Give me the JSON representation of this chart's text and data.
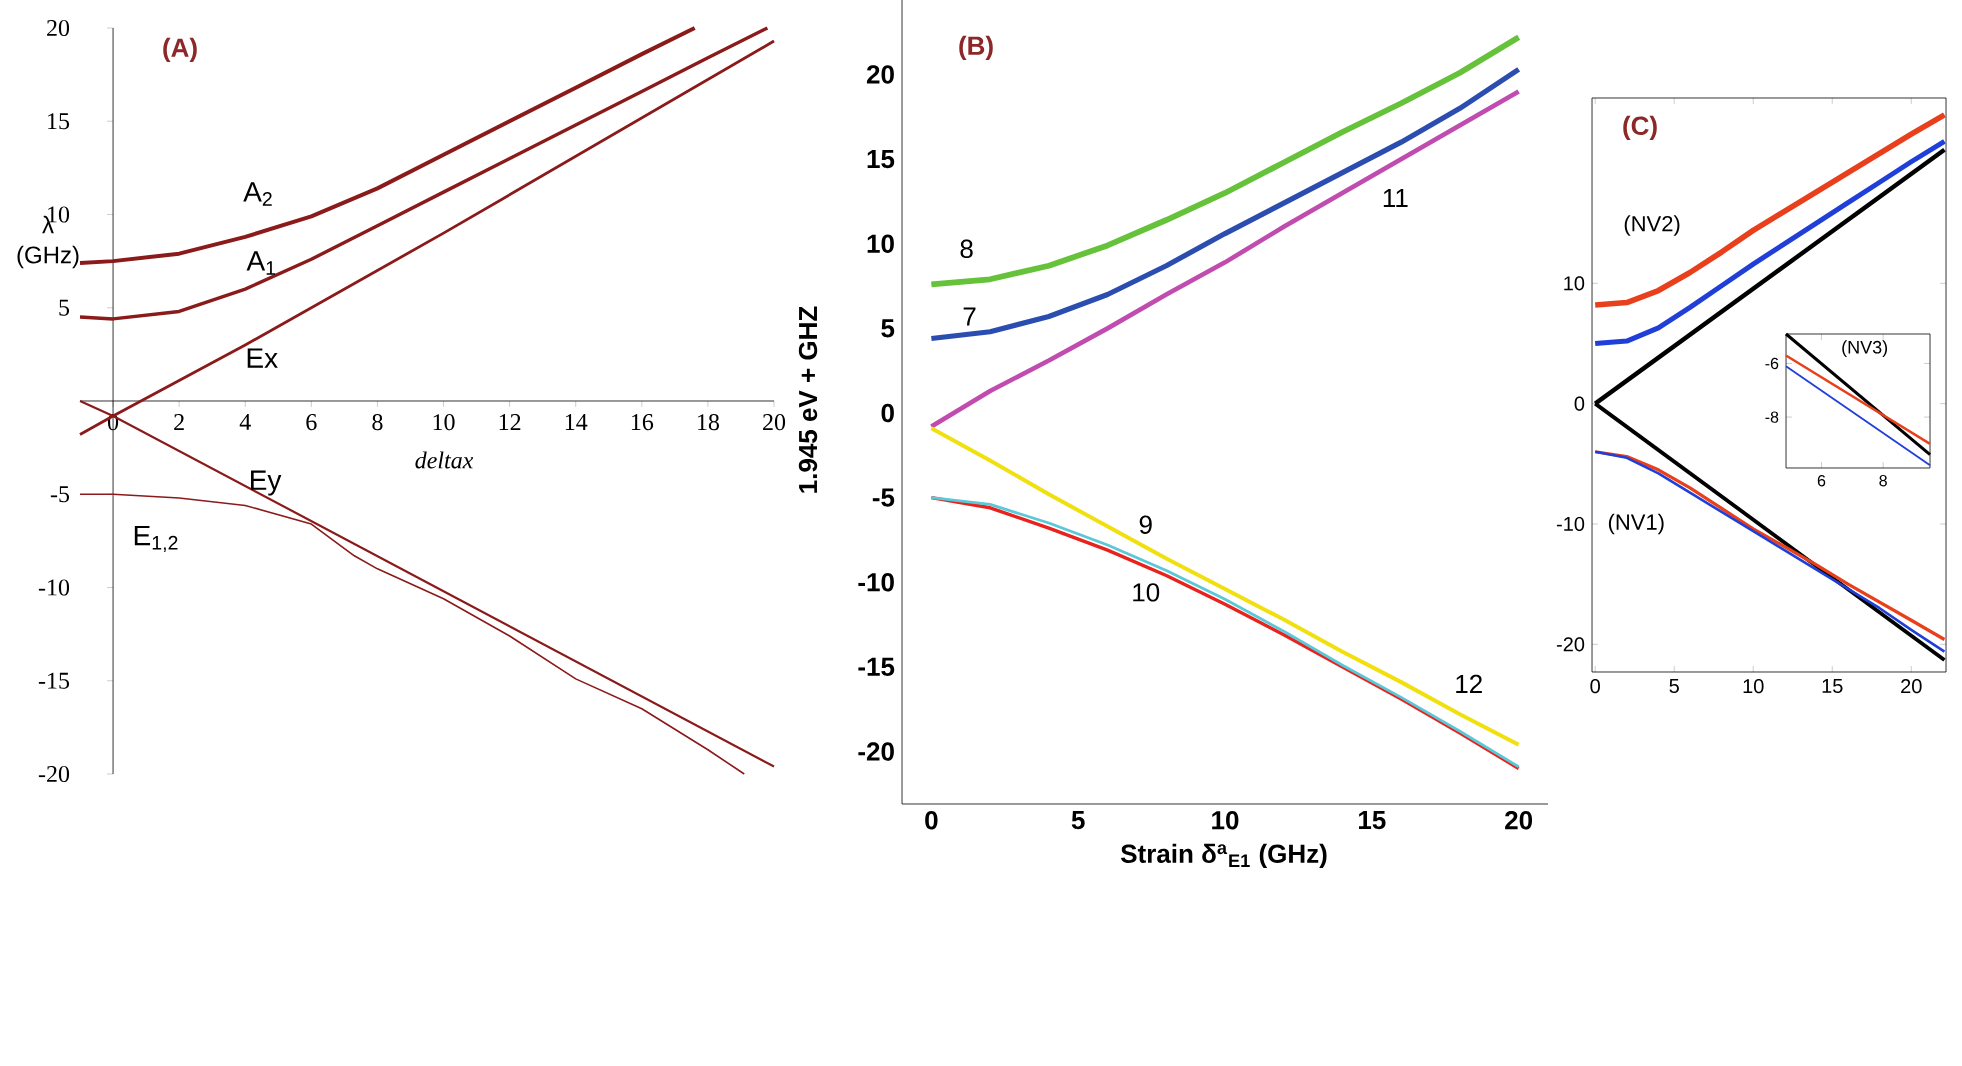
{
  "chart_data": [
    {
      "type": "line",
      "title": "(A)",
      "xlabel": "deltax",
      "ylabel": "λ (GHz)",
      "xlim": [
        -1,
        20
      ],
      "ylim": [
        -20,
        20
      ],
      "xticks": [
        0,
        2,
        4,
        6,
        8,
        10,
        12,
        14,
        16,
        18,
        20
      ],
      "yticks": [
        -20,
        -15,
        -10,
        -5,
        5,
        10,
        15,
        20
      ],
      "series": [
        {
          "color": "#8b1a1a",
          "x": [
            -1,
            0,
            2,
            4,
            6,
            8,
            10,
            12,
            14,
            16,
            17.6
          ],
          "values": [
            7.4,
            7.5,
            7.9,
            8.8,
            9.9,
            11.4,
            13.2,
            15.0,
            16.8,
            18.6,
            20
          ]
        },
        {
          "color": "#8b1a1a",
          "x": [
            -1,
            0,
            2,
            4,
            6,
            8,
            10,
            12,
            14,
            16,
            18,
            19.8
          ],
          "values": [
            4.5,
            4.4,
            4.8,
            6.0,
            7.6,
            9.4,
            11.2,
            13.0,
            14.8,
            16.6,
            18.4,
            20
          ]
        },
        {
          "color": "#8b1a1a",
          "x": [
            -1,
            0,
            2,
            4,
            10,
            20
          ],
          "values": [
            -1.8,
            -0.8,
            1.1,
            3.0,
            9.0,
            19.3
          ]
        },
        {
          "color": "#8b1a1a",
          "x": [
            -1,
            0,
            10,
            20
          ],
          "values": [
            0,
            -0.8,
            -10.2,
            -19.6
          ]
        },
        {
          "color": "#8b1a1a",
          "x": [
            -1,
            0,
            2,
            4,
            6,
            7.3,
            8,
            10,
            12,
            14,
            16,
            18,
            19.1
          ],
          "values": [
            -5,
            -5,
            -5.2,
            -5.6,
            -6.6,
            -8.3,
            -9.0,
            -10.6,
            -12.6,
            -14.9,
            -16.5,
            -18.7,
            -20
          ]
        }
      ],
      "annotations": [
        "A$_{2}$",
        "A$_{1}$",
        "Ex",
        "Ey",
        "E$_{1,2}$"
      ]
    },
    {
      "type": "line",
      "title": "(B)",
      "xlabel": "Strain δ$^{a}$$_{E1}$ (GHz)",
      "ylabel": "1.945 eV + GHZ",
      "xlim": [
        -1,
        21
      ],
      "ylim": [
        -23.1,
        24.4
      ],
      "xticks": [
        0,
        5,
        10,
        15,
        20
      ],
      "yticks": [
        -20,
        -15,
        -10,
        -5,
        0,
        5,
        10,
        15,
        20
      ],
      "x": [
        0,
        2,
        4,
        6,
        8,
        10,
        12,
        14,
        16,
        18,
        20
      ],
      "series": [
        {
          "color": "#66c23a",
          "values": [
            7.6,
            7.9,
            8.7,
            9.9,
            11.4,
            13.0,
            14.8,
            16.6,
            18.3,
            20.1,
            22.2
          ]
        },
        {
          "color": "#2b4db0",
          "values": [
            4.4,
            4.8,
            5.7,
            7.0,
            8.7,
            10.6,
            12.4,
            14.2,
            16.0,
            18.0,
            20.3
          ]
        },
        {
          "color": "#c04cb0",
          "values": [
            -0.8,
            1.3,
            3.1,
            5.0,
            7.0,
            8.9,
            11.0,
            13.0,
            15.0,
            17.0,
            19.0
          ]
        },
        {
          "color": "#f0e010",
          "values": [
            -0.9,
            -2.8,
            -4.8,
            -6.7,
            -8.6,
            -10.4,
            -12.2,
            -14.1,
            -15.9,
            -17.8,
            -19.6
          ]
        },
        {
          "color": "#e8221c",
          "values": [
            -5.0,
            -5.6,
            -6.8,
            -8.1,
            -9.6,
            -11.3,
            -13.1,
            -15.0,
            -16.9,
            -18.9,
            -21.0
          ]
        },
        {
          "color": "#5bc8d8",
          "values": [
            -5.0,
            -5.4,
            -6.5,
            -7.8,
            -9.3,
            -11.0,
            -12.9,
            -14.9,
            -16.8,
            -18.8,
            -20.9
          ]
        }
      ],
      "annotations": [
        "8",
        "7",
        "11",
        "9",
        "10",
        "12"
      ]
    },
    {
      "type": "line",
      "title": "(C)",
      "xlim": [
        -0.2,
        22.2
      ],
      "ylim": [
        -22.3,
        25.4
      ],
      "xticks": [
        0,
        5,
        10,
        15,
        20
      ],
      "yticks": [
        -20,
        -10,
        0,
        10
      ],
      "series": [
        {
          "color": "#e8401c",
          "x": [
            0,
            2,
            4,
            6,
            8,
            10,
            12,
            14,
            16,
            18,
            20,
            22.1
          ],
          "values": [
            8.2,
            8.4,
            9.4,
            10.9,
            12.6,
            14.4,
            16.0,
            17.6,
            19.2,
            20.8,
            22.4,
            24.0
          ]
        },
        {
          "color": "#1f3fd8",
          "x": [
            0,
            2,
            4,
            6,
            8,
            10,
            12,
            14,
            16,
            18,
            20,
            22.1
          ],
          "values": [
            5.0,
            5.2,
            6.3,
            8.0,
            9.8,
            11.6,
            13.3,
            15.0,
            16.7,
            18.4,
            20.1,
            21.8
          ]
        },
        {
          "color": "#000000",
          "x": [
            0,
            22.1
          ],
          "values": [
            0,
            21.1
          ]
        },
        {
          "color": "#000000",
          "x": [
            0,
            22.1
          ],
          "values": [
            0,
            -21.3
          ]
        },
        {
          "color": "#e8401c",
          "x": [
            0,
            2,
            4,
            6,
            8,
            10,
            12,
            14,
            16,
            18,
            20,
            22.1
          ],
          "values": [
            -4.0,
            -4.4,
            -5.5,
            -7.0,
            -8.7,
            -10.4,
            -11.9,
            -13.4,
            -15.0,
            -16.5,
            -18.0,
            -19.6
          ]
        },
        {
          "color": "#1f3fd8",
          "x": [
            0,
            2,
            4,
            6,
            8,
            10,
            12,
            14,
            16,
            18,
            20,
            22.1
          ],
          "values": [
            -4.0,
            -4.5,
            -5.8,
            -7.4,
            -9.0,
            -10.6,
            -12.2,
            -13.8,
            -15.4,
            -17.0,
            -18.8,
            -20.6
          ]
        }
      ],
      "annotations": [
        "(NV2)",
        "(NV1)"
      ]
    },
    {
      "type": "line",
      "xlim": [
        4.85,
        9.52
      ],
      "ylim": [
        -9.9,
        -4.9
      ],
      "xticks": [
        6,
        8
      ],
      "yticks": [
        -8,
        -6
      ],
      "series": [
        {
          "color": "#000000",
          "x": [
            4.85,
            9.52
          ],
          "values": [
            -4.9,
            -9.4
          ]
        },
        {
          "color": "#e8401c",
          "x": [
            4.85,
            9.52
          ],
          "values": [
            -5.7,
            -9.0
          ]
        },
        {
          "color": "#1f3fd8",
          "x": [
            4.85,
            9.52
          ],
          "values": [
            -6.1,
            -9.8
          ]
        }
      ],
      "annotations": [
        "(NV3)"
      ]
    }
  ]
}
